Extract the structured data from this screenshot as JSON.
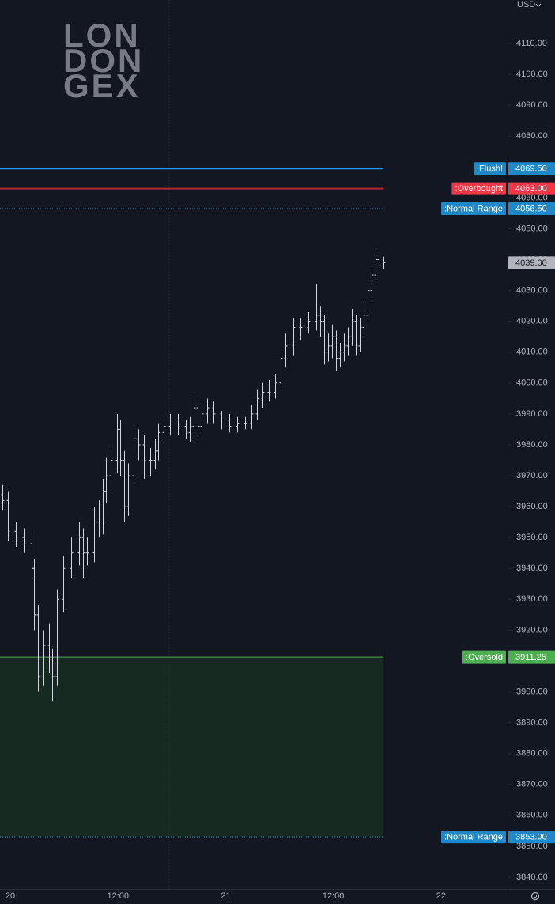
{
  "chart_data": {
    "type": "ohlc",
    "currency": "USD",
    "watermark": [
      "LON",
      "DON",
      "GEX"
    ],
    "bar_color": "#d1d4dc",
    "xlim": [
      -1.15,
      55.42
    ],
    "ylim": [
      3836.15,
      4124.08
    ],
    "xticks": [
      {
        "value": 0,
        "label": "20"
      },
      {
        "value": 12,
        "label": "12:00"
      },
      {
        "value": 24,
        "label": "21"
      },
      {
        "value": 36,
        "label": "12:00"
      },
      {
        "value": 48,
        "label": "22"
      }
    ],
    "yticks": [
      {
        "value": 3840,
        "label": "3840.00"
      },
      {
        "value": 3850,
        "label": "3850.00"
      },
      {
        "value": 3860,
        "label": "3860.00"
      },
      {
        "value": 3870,
        "label": "3870.00"
      },
      {
        "value": 3880,
        "label": "3880.00"
      },
      {
        "value": 3890,
        "label": "3890.00"
      },
      {
        "value": 3900,
        "label": "3900.00"
      },
      {
        "value": 3910,
        "label": "3910.00"
      },
      {
        "value": 3920,
        "label": "3920.00"
      },
      {
        "value": 3930,
        "label": "3930.00"
      },
      {
        "value": 3940,
        "label": "3940.00"
      },
      {
        "value": 3950,
        "label": "3950.00"
      },
      {
        "value": 3960,
        "label": "3960.00"
      },
      {
        "value": 3970,
        "label": "3970.00"
      },
      {
        "value": 3980,
        "label": "3980.00"
      },
      {
        "value": 3990,
        "label": "3990.00"
      },
      {
        "value": 4000,
        "label": "4000.00"
      },
      {
        "value": 4010,
        "label": "4010.00"
      },
      {
        "value": 4020,
        "label": "4020.00"
      },
      {
        "value": 4030,
        "label": "4030.00"
      },
      {
        "value": 4040,
        "label": "4040.00"
      },
      {
        "value": 4050,
        "label": "4050.00"
      },
      {
        "value": 4060,
        "label": "4060.00"
      },
      {
        "value": 4070,
        "label": "4070.00"
      },
      {
        "value": 4080,
        "label": "4080.00"
      },
      {
        "value": 4090,
        "label": "4090.00"
      },
      {
        "value": 4100,
        "label": "4100.00"
      },
      {
        "value": 4110,
        "label": "4110.00"
      }
    ],
    "series": {
      "x": [
        -0.9,
        -0.3,
        0.6,
        1.5,
        2.4,
        2.6,
        3.1,
        3.7,
        4.3,
        4.7,
        5.2,
        5.9,
        6.8,
        7.7,
        8.1,
        8.5,
        9.3,
        9.9,
        10.3,
        10.7,
        11.2,
        11.9,
        12.2,
        12.7,
        13.1,
        13.7,
        14.3,
        14.9,
        15.6,
        16.1,
        16.5,
        17.1,
        17.8,
        18.7,
        19.6,
        20.0,
        20.4,
        20.9,
        21.3,
        21.9,
        22.6,
        23.5,
        24.4,
        25.3,
        26.2,
        26.9,
        27.5,
        28.1,
        28.8,
        29.5,
        30.1,
        30.7,
        31.5,
        32.3,
        33.2,
        34.1,
        34.5,
        35.0,
        35.4,
        35.9,
        36.3,
        36.7,
        37.2,
        37.6,
        38.1,
        38.5,
        38.9,
        39.4,
        39.8,
        40.3,
        40.7,
        41.1,
        41.6
      ],
      "open": [
        3964,
        3962,
        3952,
        3950,
        3948,
        3940,
        3925,
        3905,
        3915,
        3910,
        3905,
        3930,
        3940,
        3945,
        3950,
        3945,
        3945,
        3955,
        3955,
        3965,
        3970,
        3975,
        3985,
        3975,
        3960,
        3970,
        3982,
        3980,
        3975,
        3975,
        3978,
        3984,
        3986,
        3988,
        3986,
        3984,
        3986,
        3992,
        3986,
        3990,
        3992,
        3990,
        3988,
        3986,
        3987,
        3987,
        3990,
        3995,
        3997,
        3997,
        4000,
        4008,
        4012,
        4018,
        4018,
        4020,
        4022,
        4020,
        4010,
        4012,
        4015,
        4008,
        4010,
        4012,
        4015,
        4020,
        4012,
        4018,
        4022,
        4030,
        4035,
        4040,
        4038
      ],
      "high": [
        3967,
        3965,
        3955,
        3953,
        3951,
        3943,
        3928,
        3920,
        3922,
        3914,
        3933,
        3944,
        3950,
        3955,
        3953,
        3950,
        3960,
        3962,
        3969,
        3976,
        3979,
        3990,
        3988,
        3978,
        3974,
        3986,
        3985,
        3983,
        3979,
        3982,
        3987,
        3989,
        3990,
        3990,
        3988,
        3989,
        3997,
        3994,
        3993,
        3995,
        3994,
        3991,
        3990,
        3989,
        3989,
        3993,
        3998,
        4000,
        4001,
        4003,
        4011,
        4016,
        4021,
        4021,
        4023,
        4032,
        4025,
        4022,
        4016,
        4019,
        4017,
        4013,
        4016,
        4018,
        4024,
        4022,
        4021,
        4026,
        4033,
        4038,
        4043,
        4042,
        4041
      ],
      "low": [
        3959,
        3949,
        3947,
        3945,
        3937,
        3920,
        3900,
        3902,
        3906,
        3897,
        3902,
        3926,
        3937,
        3941,
        3937,
        3941,
        3942,
        3950,
        3951,
        3961,
        3966,
        3971,
        3970,
        3955,
        3957,
        3967,
        3975,
        3969,
        3970,
        3972,
        3975,
        3981,
        3983,
        3983,
        3982,
        3981,
        3983,
        3982,
        3983,
        3987,
        3987,
        3985,
        3984,
        3984,
        3985,
        3985,
        3988,
        3992,
        3994,
        3995,
        3998,
        4005,
        4009,
        4014,
        4016,
        4017,
        4015,
        4006,
        4007,
        4008,
        4004,
        4005,
        4007,
        4009,
        4012,
        4009,
        4010,
        4015,
        4020,
        4027,
        4033,
        4035,
        4037
      ],
      "close": [
        3962,
        3952,
        3950,
        3948,
        3940,
        3925,
        3905,
        3915,
        3910,
        3905,
        3930,
        3940,
        3945,
        3950,
        3945,
        3945,
        3955,
        3955,
        3965,
        3970,
        3975,
        3985,
        3975,
        3960,
        3970,
        3982,
        3980,
        3975,
        3975,
        3978,
        3984,
        3986,
        3988,
        3986,
        3984,
        3986,
        3992,
        3986,
        3990,
        3992,
        3990,
        3988,
        3986,
        3987,
        3987,
        3990,
        3995,
        3997,
        3997,
        4000,
        4008,
        4012,
        4018,
        4018,
        4020,
        4022,
        4020,
        4010,
        4012,
        4015,
        4008,
        4010,
        4012,
        4015,
        4020,
        4012,
        4018,
        4022,
        4030,
        4035,
        4040,
        4038,
        4039
      ]
    },
    "last_price": {
      "value": 4039,
      "label": "4039.00"
    },
    "levels": [
      {
        "name": ":Flush!",
        "value": 4069.5,
        "value_label": "4069.50",
        "color": "#2196f3",
        "badge_color": "#1e88c8",
        "style": "solid"
      },
      {
        "name": ":Overbought",
        "value": 4063,
        "value_label": "4063.00",
        "color": "#b22833",
        "badge_color": "#f23645",
        "style": "solid"
      },
      {
        "name": ":Normal Range",
        "value": 4056.5,
        "value_label": "4056.50",
        "color": "#1e88c8",
        "badge_color": "#1e88c8",
        "style": "dotted"
      },
      {
        "name": ":Oversold",
        "value": 3911.25,
        "value_label": "3911.25",
        "color": "#4caf50",
        "badge_color": "#4caf50",
        "style": "solid",
        "fill": "#172a22"
      },
      {
        "name": ":Normal Range",
        "value": 3853,
        "value_label": "3853.00",
        "color": "#1e88c8",
        "badge_color": "#1e88c8",
        "style": "dotted"
      }
    ]
  }
}
